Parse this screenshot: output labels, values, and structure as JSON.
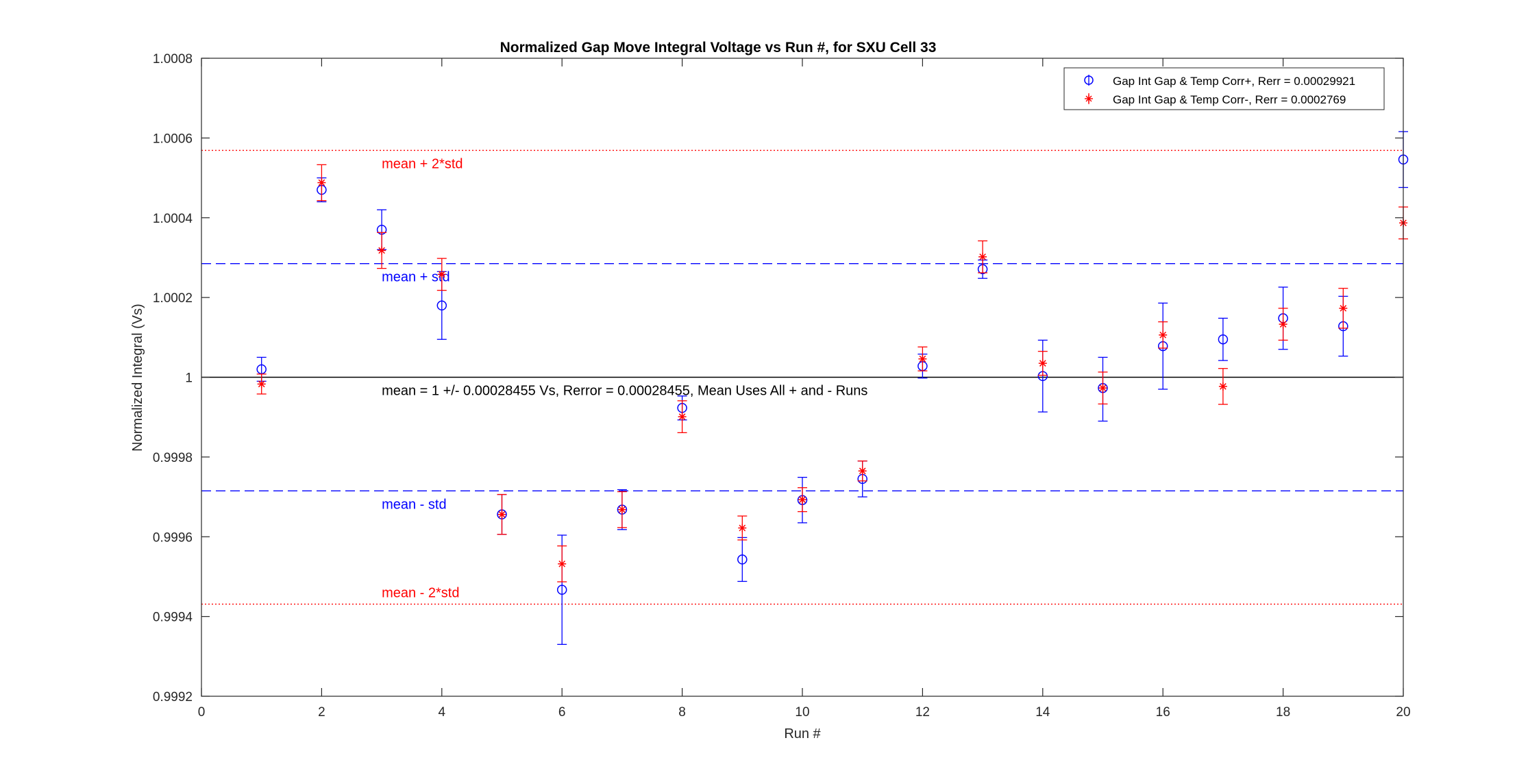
{
  "chart_data": {
    "type": "scatter",
    "title": "Normalized Gap Move Integral Voltage vs Run #, for SXU Cell 33",
    "xlabel": "Run #",
    "ylabel": "Normalized Integral (Vs)",
    "xlim": [
      0,
      20
    ],
    "ylim": [
      0.9992,
      1.0008
    ],
    "x_ticks": [
      0,
      2,
      4,
      6,
      8,
      10,
      12,
      14,
      16,
      18,
      20
    ],
    "x_tick_labels": [
      "0",
      "2",
      "4",
      "6",
      "8",
      "10",
      "12",
      "14",
      "16",
      "18",
      "20"
    ],
    "y_ticks": [
      0.9992,
      0.9994,
      0.9996,
      0.9998,
      1.0,
      1.0002,
      1.0004,
      1.0006,
      1.0008
    ],
    "y_tick_labels": [
      "0.9992",
      "0.9994",
      "0.9996",
      "0.9998",
      "1",
      "1.0002",
      "1.0004",
      "1.0006",
      "1.0008"
    ],
    "grid": false,
    "legend_position": "top-right",
    "series": [
      {
        "name": "Gap Int Gap & Temp Corr+, Rerr = 0.00029921",
        "marker": "circle",
        "color": "#0000ff",
        "x": [
          1,
          2,
          3,
          4,
          5,
          6,
          7,
          8,
          9,
          10,
          11,
          12,
          13,
          14,
          15,
          16,
          17,
          18,
          19,
          20
        ],
        "y": [
          1.00002,
          1.00047,
          1.00037,
          1.00018,
          0.999656,
          0.999467,
          0.999668,
          0.999923,
          0.999543,
          0.999692,
          0.999745,
          1.000028,
          1.000271,
          1.000003,
          0.999973,
          1.000078,
          1.000095,
          1.000148,
          1.000128,
          1.000546
        ],
        "err_low": [
          3e-05,
          3e-05,
          5e-05,
          8.5e-05,
          5e-05,
          0.000137,
          5e-05,
          3e-05,
          5.5e-05,
          5.7e-05,
          4.5e-05,
          3e-05,
          2.3e-05,
          9e-05,
          8.3e-05,
          0.000108,
          5.3e-05,
          7.8e-05,
          7.5e-05,
          7e-05
        ],
        "err_high": [
          3e-05,
          3e-05,
          5e-05,
          8.5e-05,
          5e-05,
          0.000137,
          5e-05,
          3e-05,
          5.5e-05,
          5.7e-05,
          4.5e-05,
          3e-05,
          2.3e-05,
          9e-05,
          7.7e-05,
          0.000108,
          5.3e-05,
          7.8e-05,
          7.5e-05,
          7e-05
        ]
      },
      {
        "name": "Gap Int Gap & Temp  Corr-, Rerr = 0.0002769",
        "marker": "asterisk",
        "color": "#ff0000",
        "x": [
          1,
          2,
          3,
          4,
          5,
          6,
          7,
          8,
          9,
          10,
          11,
          12,
          13,
          14,
          15,
          16,
          17,
          18,
          19,
          20
        ],
        "y": [
          0.999983,
          1.000488,
          1.000318,
          1.000258,
          0.999656,
          0.999532,
          0.999668,
          0.999901,
          0.999622,
          0.999693,
          0.999765,
          1.000046,
          1.000302,
          1.000035,
          0.999973,
          1.000106,
          0.999977,
          1.000133,
          1.000173,
          1.000387
        ],
        "err_low": [
          2.5e-05,
          4.5e-05,
          4.5e-05,
          4e-05,
          5e-05,
          4.5e-05,
          4.5e-05,
          4e-05,
          3e-05,
          3e-05,
          2.5e-05,
          3e-05,
          4e-05,
          3e-05,
          4e-05,
          3.3e-05,
          4.5e-05,
          4e-05,
          5e-05,
          4e-05
        ],
        "err_high": [
          2.5e-05,
          4.5e-05,
          4.5e-05,
          4e-05,
          5e-05,
          4.5e-05,
          4.5e-05,
          4e-05,
          3e-05,
          3e-05,
          2.5e-05,
          3e-05,
          4e-05,
          3e-05,
          4e-05,
          3.3e-05,
          4.5e-05,
          4e-05,
          5e-05,
          4e-05
        ]
      }
    ],
    "reference_lines": [
      {
        "y": 1.0,
        "style": "solid",
        "color": "#000000",
        "label": "mean = 1 +/- 0.00028455 Vs, Rerror = 0.00028455, Mean Uses All + and - Runs",
        "label_color": "#000000",
        "label_position": "below"
      },
      {
        "y": 1.000285,
        "style": "dashed",
        "color": "#0000ff",
        "label": "mean + std",
        "label_color": "#0000ff",
        "label_position": "below"
      },
      {
        "y": 0.999715,
        "style": "dashed",
        "color": "#0000ff",
        "label": "mean - std",
        "label_color": "#0000ff",
        "label_position": "below"
      },
      {
        "y": 1.000569,
        "style": "dotted",
        "color": "#ff0000",
        "label": "mean + 2*std",
        "label_color": "#ff0000",
        "label_position": "below"
      },
      {
        "y": 0.999431,
        "style": "dotted",
        "color": "#ff0000",
        "label": "mean - 2*std",
        "label_color": "#ff0000",
        "label_position": "above"
      }
    ]
  }
}
